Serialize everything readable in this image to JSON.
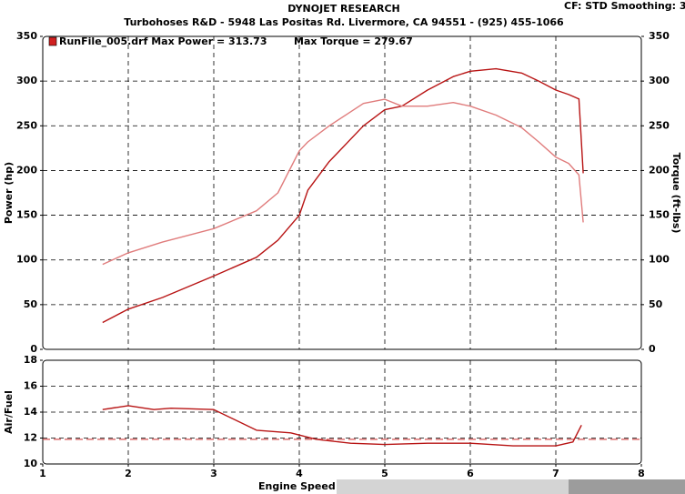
{
  "header": {
    "settings": "CF: STD  Smoothing: 3"
  },
  "chart_data": [
    {
      "type": "line",
      "title": "DYNOJET RESEARCH",
      "subtitle": "Turbohoses R&D - 5948 Las Positas Rd. Livermore, CA 94551 - (925) 455-1066",
      "legend": "RunFile_005.drf Max Power = 313.73",
      "annotation": "Max Torque = 279.67",
      "legend_color": "#d02020",
      "x": [
        1.7,
        2.0,
        2.4,
        3.0,
        3.5,
        3.75,
        4.0,
        4.1,
        4.35,
        4.75,
        5.0,
        5.2,
        5.5,
        5.8,
        6.0,
        6.3,
        6.6,
        6.8,
        7.0,
        7.15,
        7.27,
        7.32
      ],
      "series": [
        {
          "name": "Power (hp)",
          "color": "#b81414",
          "axis": "y",
          "values": [
            30,
            45,
            58,
            82,
            103,
            122,
            150,
            178,
            210,
            250,
            268,
            272,
            290,
            305,
            311,
            313.73,
            309,
            300,
            290,
            285,
            280,
            197
          ]
        },
        {
          "name": "Torque (ft-lbs)",
          "color": "#e07c7c",
          "axis": "y2",
          "values": [
            95,
            108,
            120,
            135,
            155,
            175,
            222,
            232,
            250,
            275,
            279.67,
            272,
            272,
            276,
            272,
            262,
            248,
            232,
            215,
            208,
            195,
            142
          ]
        }
      ],
      "xlim": [
        1,
        8
      ],
      "xticks": [
        1,
        2,
        3,
        4,
        5,
        6,
        7,
        8
      ],
      "ylim": [
        0,
        350
      ],
      "yticks": [
        0,
        50,
        100,
        150,
        200,
        250,
        300,
        350
      ],
      "y2lim": [
        0,
        350
      ],
      "y2ticks": [
        0,
        50,
        100,
        150,
        200,
        250,
        300,
        350
      ],
      "grid": true
    },
    {
      "type": "line",
      "ylabel": "Air/Fuel",
      "xlabel": "Engine Speed",
      "x": [
        1.7,
        2.0,
        2.3,
        2.5,
        3.0,
        3.5,
        3.9,
        4.2,
        4.6,
        5.0,
        5.5,
        6.0,
        6.5,
        7.0,
        7.2,
        7.3
      ],
      "series": [
        {
          "name": "Air/Fuel",
          "color": "#b81414",
          "values": [
            14.2,
            14.5,
            14.2,
            14.3,
            14.2,
            12.6,
            12.4,
            11.9,
            11.6,
            11.5,
            11.6,
            11.6,
            11.4,
            11.4,
            11.7,
            13.0
          ]
        }
      ],
      "reference_line": 11.9,
      "reference_color": "#d04040",
      "xlim": [
        1,
        8
      ],
      "xticks": [
        1,
        2,
        3,
        4,
        5,
        6,
        7,
        8
      ],
      "ylim": [
        10,
        18
      ],
      "yticks": [
        10,
        12,
        14,
        16,
        18
      ],
      "grid": true
    }
  ]
}
